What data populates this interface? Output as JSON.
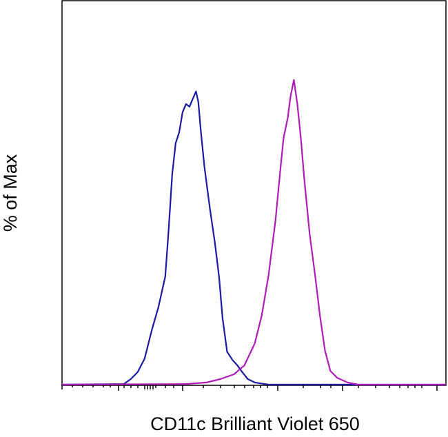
{
  "chart_data": {
    "type": "line",
    "x_label": "CD11c Brilliant Violet 650",
    "y_label": "% of Max",
    "xlim": [
      0,
      100
    ],
    "ylim": [
      0,
      126
    ],
    "series": [
      {
        "color": "#1a1aa6",
        "x": [
          0,
          16.1,
          17.9,
          19.7,
          21.5,
          23.3,
          25.1,
          26.9,
          27.8,
          28.7,
          29.6,
          30.5,
          31.4,
          32.3,
          33.2,
          34.1,
          34.9,
          35.5,
          36.2,
          37.1,
          38.5,
          39.8,
          40.9,
          41.8,
          43.0,
          44.4,
          45.7,
          47.0,
          48.4,
          50.2,
          53.8,
          100
        ],
        "values": [
          0,
          0.2,
          1.8,
          4.1,
          8.5,
          17.5,
          25.4,
          35.5,
          51.2,
          69.2,
          79.3,
          82.7,
          89.4,
          92.1,
          91.2,
          93.9,
          96.2,
          92.8,
          82.7,
          71.5,
          58.0,
          46.7,
          35.5,
          22.0,
          10.8,
          8.1,
          6.3,
          4.0,
          1.8,
          0.7,
          0,
          0
        ]
      },
      {
        "color": "#b01cb8",
        "x": [
          0,
          32.3,
          37.6,
          41.2,
          44.8,
          47.5,
          50.2,
          52.0,
          53.8,
          55.6,
          56.8,
          57.7,
          58.8,
          59.5,
          60.4,
          61.3,
          62.2,
          63.1,
          64.5,
          65.9,
          67.2,
          68.5,
          69.9,
          71.7,
          74.4,
          77.1,
          100
        ],
        "values": [
          0,
          0.2,
          0.7,
          1.8,
          3.4,
          6.3,
          13.5,
          22.5,
          36.0,
          53.9,
          69.7,
          80.9,
          87.6,
          94.4,
          100,
          92.1,
          80.9,
          67.4,
          49.4,
          36.0,
          22.5,
          11.2,
          4.5,
          2.2,
          0.7,
          0,
          0
        ]
      }
    ]
  }
}
